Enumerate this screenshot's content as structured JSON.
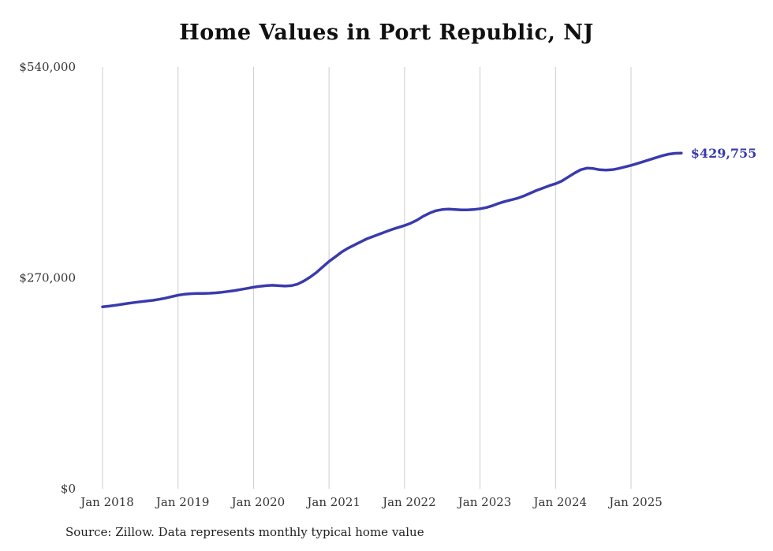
{
  "title": "Home Values in Port Republic, NJ",
  "source": "Source: Zillow. Data represents monthly typical home value",
  "colors": {
    "line": "#3a3aad",
    "grid": "#cccccc",
    "end_label": "#3a3aad",
    "tick_text": "#333333",
    "title_text": "#111111"
  },
  "chart_data": {
    "type": "line",
    "title": "Home Values in Port Republic, NJ",
    "xlabel": "",
    "ylabel": "",
    "ylim": [
      0,
      540000
    ],
    "y_ticks": [
      0,
      270000,
      540000
    ],
    "y_tick_labels": [
      "$0",
      "$270,000",
      "$540,000"
    ],
    "x_tick_labels": [
      "Jan 2018",
      "Jan 2019",
      "Jan 2020",
      "Jan 2021",
      "Jan 2022",
      "Jan 2023",
      "Jan 2024",
      "Jan 2025"
    ],
    "grid": "vertical-only",
    "legend": "none",
    "series_name": "Typical home value (monthly)",
    "start_month": "2018-01",
    "end_value_label": "$429,755",
    "values": [
      233000,
      233800,
      234900,
      236100,
      237300,
      238400,
      239400,
      240300,
      241200,
      242500,
      244100,
      246000,
      247800,
      249000,
      249700,
      250000,
      250100,
      250300,
      250800,
      251600,
      252600,
      253800,
      255200,
      256600,
      258000,
      259200,
      260000,
      260500,
      260000,
      259500,
      260000,
      262000,
      266000,
      271000,
      277000,
      284000,
      291000,
      297000,
      303000,
      308000,
      312000,
      316000,
      320000,
      323000,
      326000,
      329000,
      332000,
      334500,
      337000,
      340000,
      344000,
      349000,
      353000,
      356000,
      357500,
      358000,
      357500,
      357000,
      357000,
      357500,
      358500,
      360000,
      362500,
      365500,
      368000,
      370000,
      372000,
      375000,
      378500,
      382000,
      385000,
      388000,
      390500,
      394000,
      399000,
      404000,
      408500,
      410500,
      410000,
      408500,
      408000,
      408500,
      410000,
      412000,
      414000,
      416500,
      419000,
      421500,
      424000,
      426500,
      428500,
      429500,
      429755
    ]
  }
}
